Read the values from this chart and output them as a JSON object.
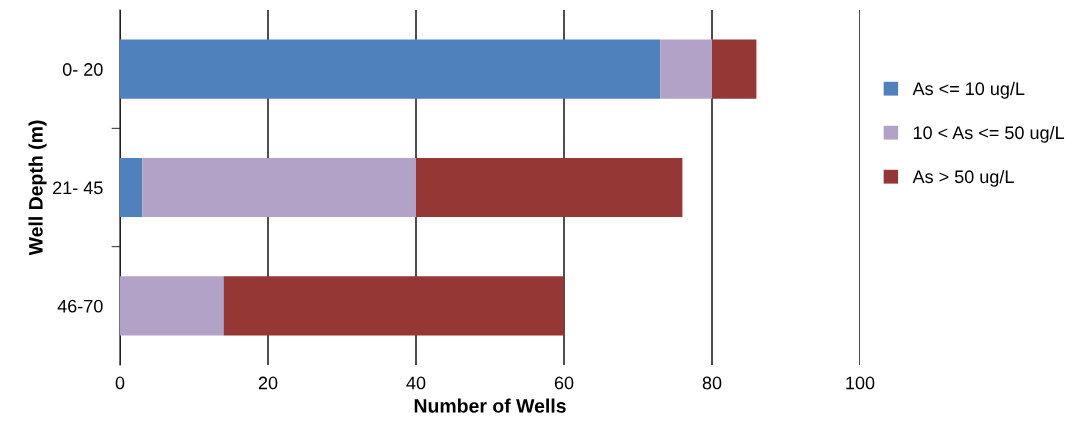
{
  "chart_data": {
    "type": "bar",
    "orientation": "horizontal",
    "stacked": true,
    "xlabel": "Number of Wells",
    "ylabel": "Well Depth (m)",
    "categories": [
      "0- 20",
      "21- 45",
      "46-70"
    ],
    "series": [
      {
        "name": "As <= 10 ug/L",
        "color": "#4f81bd",
        "values": [
          73,
          3,
          0
        ]
      },
      {
        "name": "10 < As <= 50 ug/L",
        "color": "#b3a2c7",
        "values": [
          7,
          37,
          14
        ]
      },
      {
        "name": "As > 50 ug/L",
        "color": "#953735",
        "values": [
          6,
          36,
          46
        ]
      }
    ],
    "xlim": [
      0,
      100
    ],
    "xticks": [
      0,
      20,
      40,
      60,
      80,
      100
    ],
    "grid": "x",
    "legend": "right"
  }
}
